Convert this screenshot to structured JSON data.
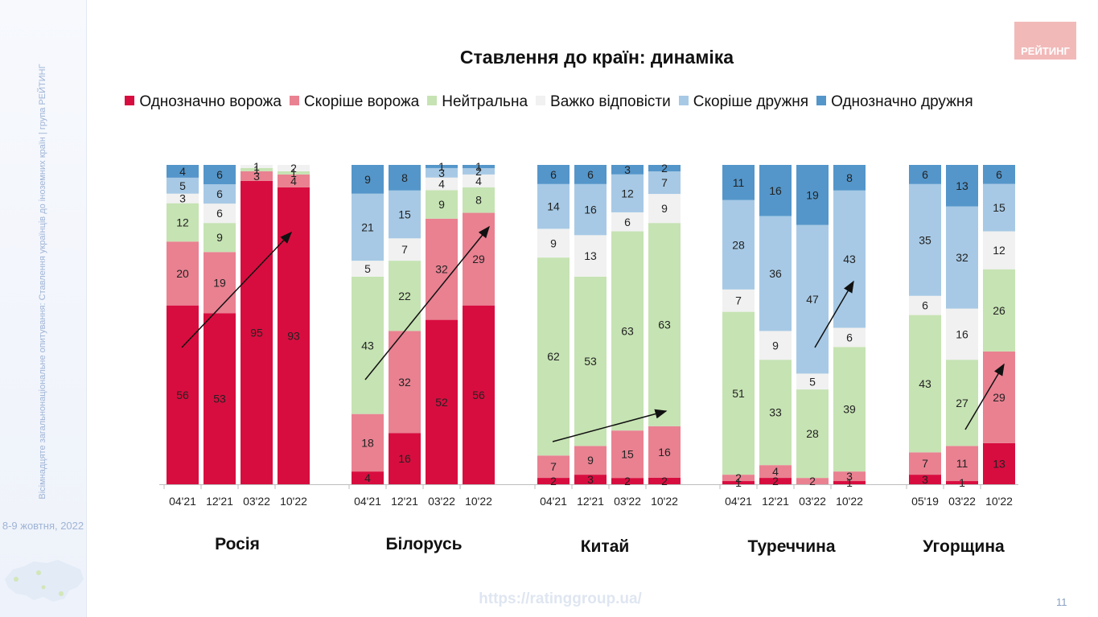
{
  "title": "Ставлення до країн: динаміка",
  "sidebar": {
    "note": "Вісімнадцяте загальнонаціональне опитування: Ставлення українців до іноземних країн | група РЕЙТИНГ",
    "date": "8-9 жовтня, 2022"
  },
  "logo_text": "РЕЙТИНГ",
  "footer_url": "https://ratinggroup.ua/",
  "page_number": "11",
  "colors": {
    "Однозначно ворожа": "#d80d3f",
    "Скоріше ворожа": "#e98191",
    "Нейтральна": "#c6e3b3",
    "Важко відповісти": "#f1f1f1",
    "Скоріше дружня": "#a7c9e5",
    "Однозначно дружня": "#5496ca"
  },
  "chart_data": {
    "type": "bar",
    "stacked": true,
    "percent": true,
    "ylim": [
      0,
      100
    ],
    "legend": [
      "Однозначно ворожа",
      "Скоріше ворожа",
      "Нейтральна",
      "Важко відповісти",
      "Скоріше дружня",
      "Однозначно дружня"
    ],
    "legend_position": "top",
    "groups": [
      {
        "name": "Росія",
        "periods": [
          "04'21",
          "12'21",
          "03'22",
          "10'22"
        ],
        "values": [
          [
            56,
            20,
            12,
            3,
            5,
            4
          ],
          [
            53,
            19,
            9,
            6,
            6,
            6
          ],
          [
            95,
            3,
            1,
            1,
            0,
            0
          ],
          [
            93,
            4,
            1,
            2,
            0,
            0
          ]
        ],
        "labels": [
          [
            "56",
            "20",
            "12",
            "3",
            "5",
            "4"
          ],
          [
            "53",
            "19",
            "9",
            "6",
            "6",
            "6"
          ],
          [
            "95",
            "3",
            "1",
            "1",
            "",
            ""
          ],
          [
            "93",
            "4",
            "1",
            "2",
            "",
            ""
          ]
        ]
      },
      {
        "name": "Білорусь",
        "periods": [
          "04'21",
          "12'21",
          "03'22",
          "10'22"
        ],
        "values": [
          [
            4,
            18,
            43,
            5,
            21,
            9
          ],
          [
            16,
            32,
            22,
            7,
            15,
            8
          ],
          [
            52,
            32,
            9,
            4,
            3,
            1
          ],
          [
            56,
            29,
            8,
            4,
            2,
            1
          ]
        ],
        "labels": [
          [
            "4",
            "18",
            "43",
            "5",
            "21",
            "9"
          ],
          [
            "16",
            "32",
            "22",
            "7",
            "15",
            "8"
          ],
          [
            "52",
            "32",
            "9",
            "4",
            "3",
            "1"
          ],
          [
            "56",
            "29",
            "8",
            "4",
            "2",
            "1"
          ]
        ]
      },
      {
        "name": "Китай",
        "periods": [
          "04'21",
          "12'21",
          "03'22",
          "10'22"
        ],
        "values": [
          [
            2,
            7,
            62,
            9,
            14,
            6
          ],
          [
            3,
            9,
            53,
            13,
            16,
            6
          ],
          [
            2,
            15,
            63,
            6,
            12,
            3
          ],
          [
            2,
            16,
            63,
            9,
            7,
            2
          ]
        ],
        "labels": [
          [
            "2",
            "7",
            "62",
            "9",
            "14",
            "6"
          ],
          [
            "3",
            "9",
            "53",
            "13",
            "16",
            "6"
          ],
          [
            "2",
            "15",
            "63",
            "6",
            "12",
            "3"
          ],
          [
            "2",
            "16",
            "63",
            "9",
            "7",
            "2"
          ]
        ]
      },
      {
        "name": "Туреччина",
        "periods": [
          "04'21",
          "12'21",
          "03'22",
          "10'22"
        ],
        "values": [
          [
            1,
            2,
            51,
            7,
            28,
            11
          ],
          [
            2,
            4,
            33,
            9,
            36,
            16
          ],
          [
            0,
            2,
            28,
            5,
            47,
            19
          ],
          [
            1,
            3,
            39,
            6,
            43,
            8
          ]
        ],
        "labels": [
          [
            "1",
            "2",
            "51",
            "7",
            "28",
            "11"
          ],
          [
            "2",
            "4",
            "33",
            "9",
            "36",
            "16"
          ],
          [
            "",
            "2",
            "28",
            "5",
            "47",
            "19"
          ],
          [
            "1",
            "3",
            "39",
            "6",
            "43",
            "8"
          ]
        ]
      },
      {
        "name": "Угорщина",
        "periods": [
          "05'19",
          "03'22",
          "10'22"
        ],
        "values": [
          [
            3,
            7,
            43,
            6,
            35,
            6
          ],
          [
            1,
            11,
            27,
            16,
            32,
            13
          ],
          [
            13,
            29,
            26,
            12,
            15,
            6
          ]
        ],
        "labels": [
          [
            "3",
            "7",
            "43",
            "6",
            "35",
            "6"
          ],
          [
            "1",
            "11",
            "27",
            "16",
            "32",
            "13"
          ],
          [
            "13",
            "29",
            "26",
            "12",
            "15",
            "6"
          ]
        ]
      }
    ]
  }
}
